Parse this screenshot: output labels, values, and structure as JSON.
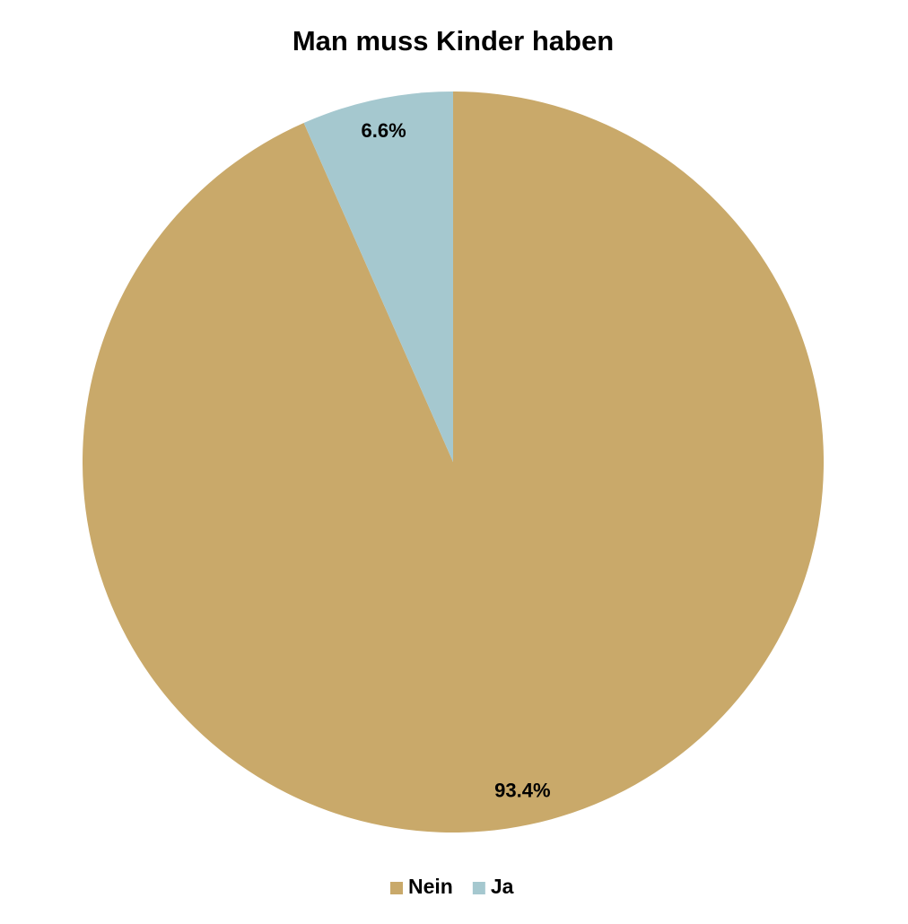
{
  "chart_data": {
    "type": "pie",
    "title": "Man muss Kinder haben",
    "categories": [
      "Nein",
      "Ja"
    ],
    "values": [
      93.4,
      6.6
    ],
    "value_labels": [
      "93.4%",
      "6.6%"
    ],
    "colors": [
      "#c9a96a",
      "#a5c8cf"
    ],
    "legend": "bottom"
  }
}
